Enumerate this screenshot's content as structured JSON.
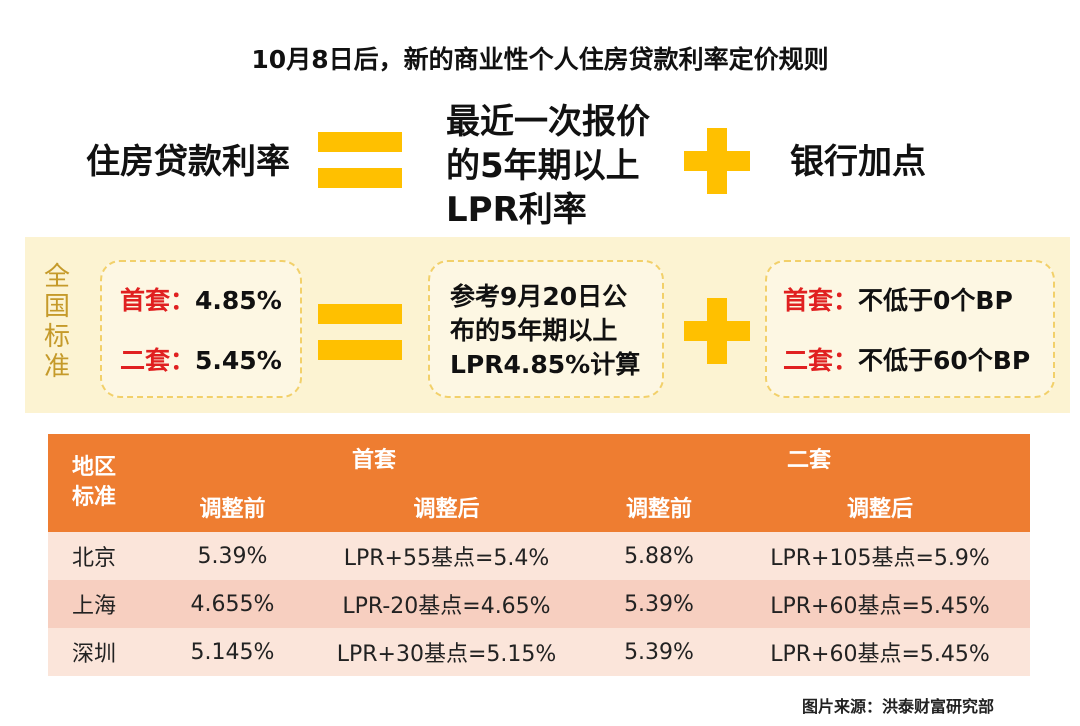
{
  "title": "10月8日后，新的商业性个人住房贷款利率定价规则",
  "formula": {
    "left": "住房贷款利率",
    "middle_lines": [
      "最近一次报价",
      "的5年期以上",
      "LPR利率"
    ],
    "right": "银行加点"
  },
  "national": {
    "side_label_chars": [
      "全",
      "国",
      "标",
      "准"
    ],
    "rate_box": [
      {
        "label": "首套：",
        "value": "4.85%"
      },
      {
        "label": "二套：",
        "value": "5.45%"
      }
    ],
    "lpr_box_lines": [
      "参考9月20日公",
      "布的5年期以上",
      "LPR4.85%计算"
    ],
    "bp_box": [
      {
        "label": "首套：",
        "value": "不低于0个BP"
      },
      {
        "label": "二套：",
        "value": "不低于60个BP"
      }
    ]
  },
  "table": {
    "corner_lines": [
      "地区",
      "标准"
    ],
    "groups": [
      "首套",
      "二套"
    ],
    "subheaders": [
      "调整前",
      "调整后",
      "调整前",
      "调整后"
    ],
    "rows": [
      {
        "region": "北京",
        "cells": [
          "5.39%",
          "LPR+55基点=5.4%",
          "5.88%",
          "LPR+105基点=5.9%"
        ]
      },
      {
        "region": "上海",
        "cells": [
          "4.655%",
          "LPR-20基点=4.65%",
          "5.39%",
          "LPR+60基点=5.45%"
        ]
      },
      {
        "region": "深圳",
        "cells": [
          "5.145%",
          "LPR+30基点=5.15%",
          "5.39%",
          "LPR+60基点=5.45%"
        ]
      }
    ]
  },
  "source": "图片来源：洪泰财富研究部",
  "colors": {
    "accent_yellow": "#FFC000",
    "band_bg": "#FCF3D2",
    "table_header": "#EE7D31",
    "row_light": "#FBE5DA",
    "row_dark": "#F7CFC0",
    "label_red": "#E02020",
    "side_label": "#C59A2A"
  }
}
